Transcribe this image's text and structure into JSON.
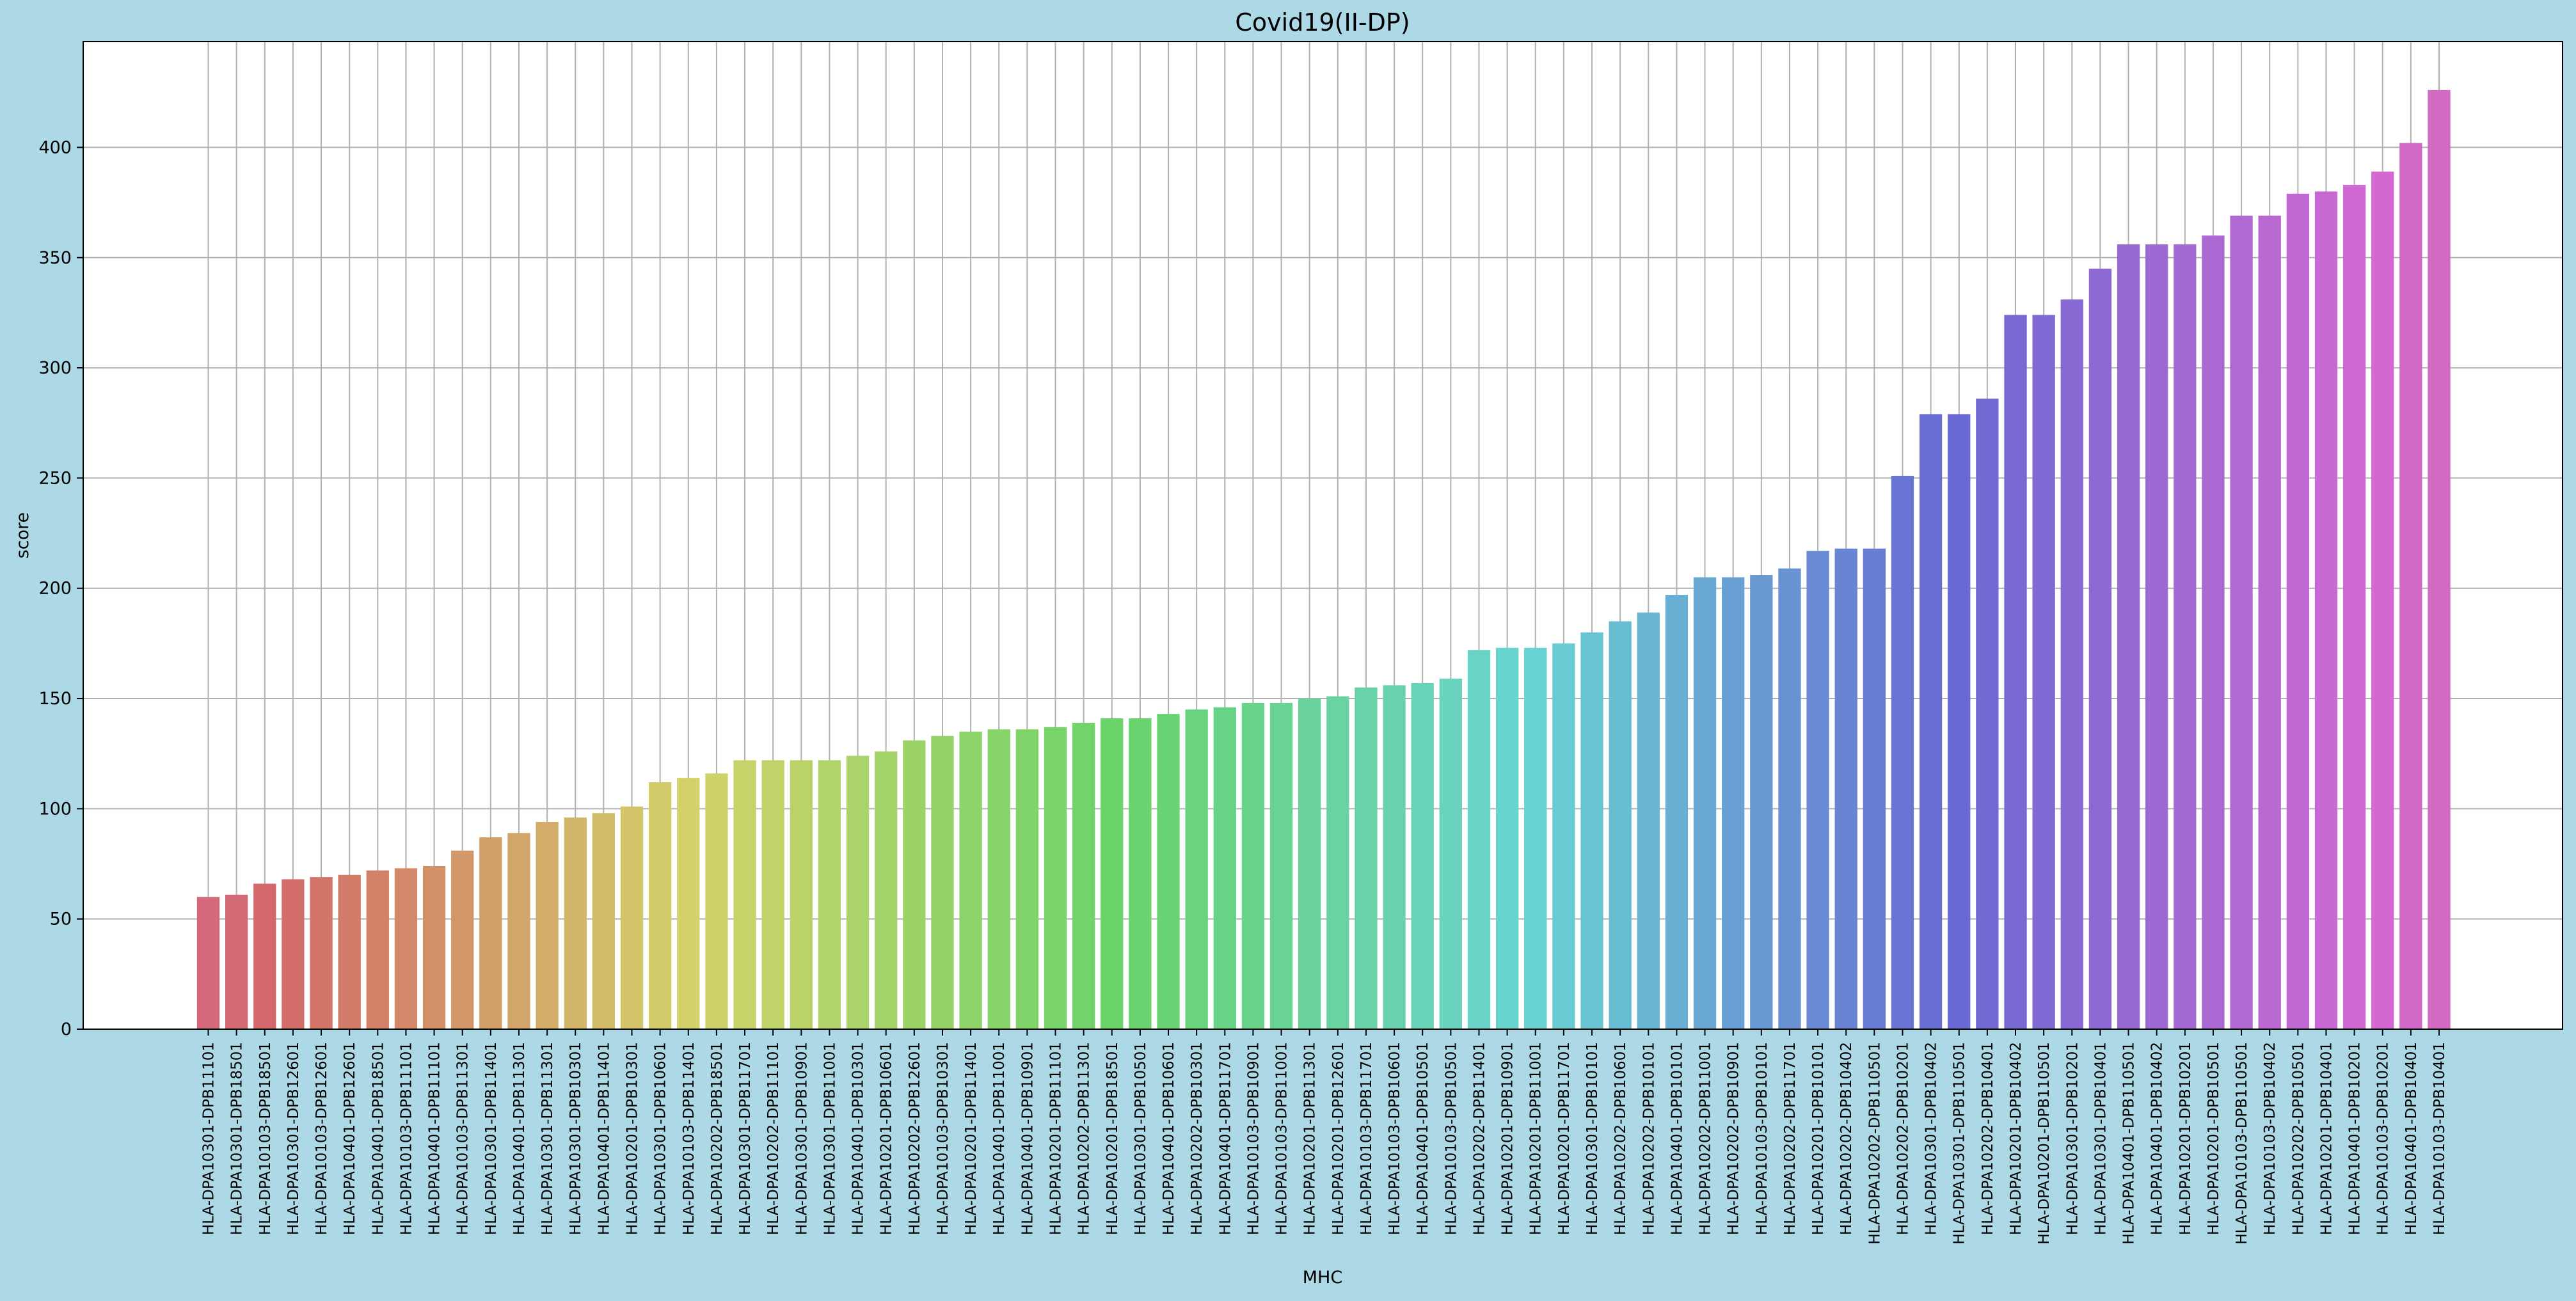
{
  "chart_data": {
    "type": "bar",
    "title": "Covid19(II-DP)",
    "xlabel": "MHC",
    "ylabel": "score",
    "ylim": [
      0,
      448
    ],
    "yticks": [
      0,
      50,
      100,
      150,
      200,
      250,
      300,
      350,
      400
    ],
    "grid": true,
    "categories": [
      "HLA-DPA10301-DPB11101",
      "HLA-DPA10301-DPB18501",
      "HLA-DPA10103-DPB18501",
      "HLA-DPA10301-DPB12601",
      "HLA-DPA10103-DPB12601",
      "HLA-DPA10401-DPB12601",
      "HLA-DPA10401-DPB18501",
      "HLA-DPA10103-DPB11101",
      "HLA-DPA10401-DPB11101",
      "HLA-DPA10103-DPB11301",
      "HLA-DPA10301-DPB11401",
      "HLA-DPA10401-DPB11301",
      "HLA-DPA10301-DPB11301",
      "HLA-DPA10301-DPB10301",
      "HLA-DPA10401-DPB11401",
      "HLA-DPA10201-DPB10301",
      "HLA-DPA10301-DPB10601",
      "HLA-DPA10103-DPB11401",
      "HLA-DPA10202-DPB18501",
      "HLA-DPA10301-DPB11701",
      "HLA-DPA10202-DPB11101",
      "HLA-DPA10301-DPB10901",
      "HLA-DPA10301-DPB11001",
      "HLA-DPA10401-DPB10301",
      "HLA-DPA10201-DPB10601",
      "HLA-DPA10202-DPB12601",
      "HLA-DPA10103-DPB10301",
      "HLA-DPA10201-DPB11401",
      "HLA-DPA10401-DPB11001",
      "HLA-DPA10401-DPB10901",
      "HLA-DPA10201-DPB11101",
      "HLA-DPA10202-DPB11301",
      "HLA-DPA10201-DPB18501",
      "HLA-DPA10301-DPB10501",
      "HLA-DPA10401-DPB10601",
      "HLA-DPA10202-DPB10301",
      "HLA-DPA10401-DPB11701",
      "HLA-DPA10103-DPB10901",
      "HLA-DPA10103-DPB11001",
      "HLA-DPA10201-DPB11301",
      "HLA-DPA10201-DPB12601",
      "HLA-DPA10103-DPB11701",
      "HLA-DPA10103-DPB10601",
      "HLA-DPA10401-DPB10501",
      "HLA-DPA10103-DPB10501",
      "HLA-DPA10202-DPB11401",
      "HLA-DPA10201-DPB10901",
      "HLA-DPA10201-DPB11001",
      "HLA-DPA10201-DPB11701",
      "HLA-DPA10301-DPB10101",
      "HLA-DPA10202-DPB10601",
      "HLA-DPA10202-DPB10101",
      "HLA-DPA10401-DPB10101",
      "HLA-DPA10202-DPB11001",
      "HLA-DPA10202-DPB10901",
      "HLA-DPA10103-DPB10101",
      "HLA-DPA10202-DPB11701",
      "HLA-DPA10201-DPB10101",
      "HLA-DPA10202-DPB10402",
      "HLA-DPA10202-DPB110501",
      "HLA-DPA10202-DPB10201",
      "HLA-DPA10301-DPB10402",
      "HLA-DPA10301-DPB110501",
      "HLA-DPA10202-DPB10401",
      "HLA-DPA10201-DPB10402",
      "HLA-DPA10201-DPB110501",
      "HLA-DPA10301-DPB10201",
      "HLA-DPA10301-DPB10401",
      "HLA-DPA10401-DPB110501",
      "HLA-DPA10401-DPB10402",
      "HLA-DPA10201-DPB10201",
      "HLA-DPA10201-DPB10501",
      "HLA-DPA10103-DPB110501",
      "HLA-DPA10103-DPB10402",
      "HLA-DPA10202-DPB10501",
      "HLA-DPA10201-DPB10401",
      "HLA-DPA10401-DPB10201",
      "HLA-DPA10103-DPB10201",
      "HLA-DPA10401-DPB10401",
      "HLA-DPA10103-DPB10401"
    ],
    "values": [
      60,
      61,
      66,
      68,
      69,
      70,
      72,
      73,
      74,
      81,
      87,
      89,
      94,
      96,
      98,
      101,
      112,
      114,
      116,
      122,
      122,
      122,
      122,
      124,
      126,
      131,
      133,
      135,
      136,
      136,
      137,
      139,
      141,
      141,
      143,
      145,
      146,
      148,
      148,
      150,
      151,
      155,
      156,
      157,
      159,
      172,
      173,
      173,
      175,
      180,
      185,
      189,
      197,
      205,
      205,
      206,
      209,
      217,
      218,
      218,
      251,
      279,
      279,
      286,
      324,
      324,
      331,
      345,
      356,
      356,
      356,
      360,
      369,
      369,
      379,
      380,
      383,
      389,
      402,
      426
    ]
  },
  "colors": {
    "background": "#add8e6",
    "plot_background": "#ffffff",
    "grid": "#b0b0b0",
    "axis": "#000000"
  }
}
